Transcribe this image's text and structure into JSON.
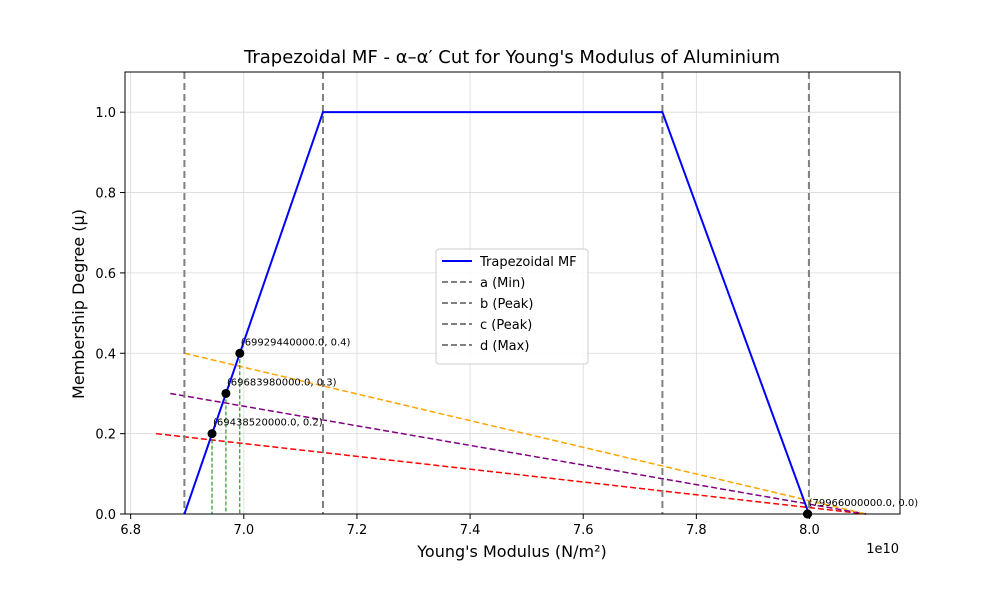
{
  "chart_data": {
    "type": "line",
    "title": "Trapezoidal MF - α–α′ Cut for Young's Modulus of Aluminium",
    "xlabel": "Young's Modulus (N/m²)",
    "ylabel": "Membership Degree (μ)",
    "x_offset_label": "1e10",
    "xlim": [
      67900000000.0,
      81600000000.0
    ],
    "ylim": [
      0,
      1.1
    ],
    "xticks": [
      68000000000.0,
      70000000000.0,
      72000000000.0,
      74000000000.0,
      76000000000.0,
      78000000000.0,
      80000000000.0
    ],
    "xtick_labels": [
      "6.8",
      "7.0",
      "7.2",
      "7.4",
      "7.6",
      "7.8",
      "8.0"
    ],
    "yticks": [
      0.0,
      0.2,
      0.4,
      0.6,
      0.8,
      1.0
    ],
    "ytick_labels": [
      "0.0",
      "0.2",
      "0.4",
      "0.6",
      "0.8",
      "1.0"
    ],
    "grid": true,
    "legend_position": "center",
    "trapezoid": {
      "a": 68950000000.0,
      "b": 71400000000.0,
      "c": 77400000000.0,
      "d": 79990000000.0
    },
    "series": [
      {
        "name": "Trapezoidal MF",
        "color": "#0000ff",
        "x": [
          68950000000.0,
          71400000000.0,
          77400000000.0,
          79990000000.0
        ],
        "y": [
          0,
          1,
          1,
          0
        ]
      }
    ],
    "vertical_lines": [
      {
        "name": "a (Min)",
        "x": 68950000000.0,
        "color": "#808080"
      },
      {
        "name": "b (Peak)",
        "x": 71400000000.0,
        "color": "#808080"
      },
      {
        "name": "c (Peak)",
        "x": 77400000000.0,
        "color": "#808080"
      },
      {
        "name": "d (Max)",
        "x": 79990000000.0,
        "color": "#808080"
      }
    ],
    "alpha_cuts": [
      {
        "alpha": 0.2,
        "color": "#ff0000",
        "x_left": 69438520000.0,
        "x_right": 79966000000.0,
        "line_start_x": 68450000000.0,
        "line_end_x": 81000000000.0
      },
      {
        "alpha": 0.3,
        "color": "#800080",
        "x_left": 69683980000.0,
        "x_right": 79966000000.0,
        "line_start_x": 68700000000.0,
        "line_end_x": 81000000000.0
      },
      {
        "alpha": 0.4,
        "color": "#ffa500",
        "x_left": 69929440000.0,
        "x_right": 79966000000.0,
        "line_start_x": 68950000000.0,
        "line_end_x": 81000000000.0
      }
    ],
    "annotations": [
      {
        "text": "(69438520000.0, 0.2)",
        "x": 69438520000.0,
        "y": 0.2
      },
      {
        "text": "(69683980000.0, 0.3)",
        "x": 69683980000.0,
        "y": 0.3
      },
      {
        "text": "(69929440000.0, 0.4)",
        "x": 69929440000.0,
        "y": 0.4
      },
      {
        "text": "(79966000000.0, 0.0)",
        "x": 79966000000.0,
        "y": 0.0
      }
    ],
    "colors": {
      "drop_line": "#008000",
      "marker": "#000000",
      "grid": "#d9d9d9"
    }
  }
}
